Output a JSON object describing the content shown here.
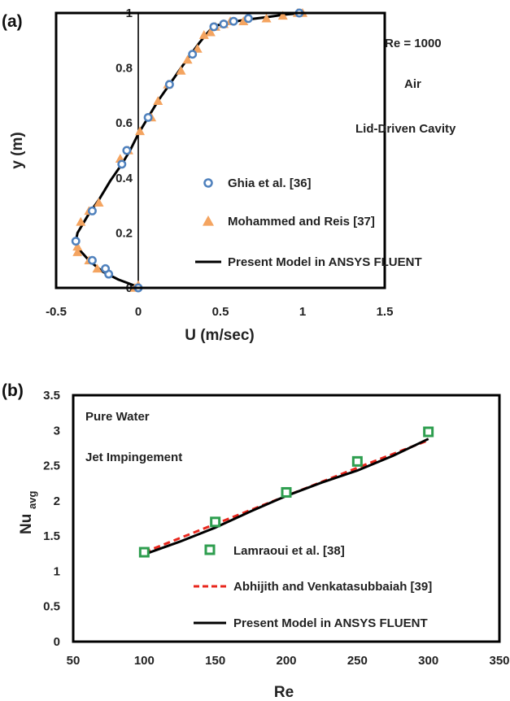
{
  "chart_data": [
    {
      "type": "scatter",
      "panel_label": "(a)",
      "xlabel": "U (m/sec)",
      "ylabel": "y (m)",
      "xlim": [
        -0.5,
        1.5
      ],
      "ylim": [
        0,
        1
      ],
      "xticks": [
        "-0.5",
        "0",
        "0.5",
        "1",
        "1.5"
      ],
      "yticks": [
        "0",
        "0.2",
        "0.4",
        "0.6",
        "0.8",
        "1"
      ],
      "annotations": [
        "Re = 1000",
        "Air",
        "Lid-Driven Cavity"
      ],
      "legend_position": "inside-right",
      "colors": {
        "ghia": "#4f81bd",
        "mohammed": "#f4a460",
        "model": "#000000"
      },
      "series": [
        {
          "name": "Ghia et al. [36]",
          "marker": "circle",
          "x": [
            0,
            -0.18,
            -0.2,
            -0.28,
            -0.38,
            -0.28,
            -0.1,
            -0.07,
            0.06,
            0.19,
            0.33,
            0.46,
            0.52,
            0.58,
            0.67,
            0.98
          ],
          "y": [
            0,
            0.05,
            0.07,
            0.1,
            0.17,
            0.28,
            0.45,
            0.5,
            0.62,
            0.74,
            0.85,
            0.95,
            0.96,
            0.97,
            0.98,
            1.0
          ]
        },
        {
          "name": "Mohammed and Reis [37]",
          "marker": "triangle",
          "x": [
            -0.02,
            0,
            -0.25,
            -0.3,
            -0.37,
            -0.37,
            -0.35,
            -0.3,
            -0.24,
            -0.11,
            -0.06,
            0.01,
            0.08,
            0.12,
            0.18,
            0.26,
            0.3,
            0.36,
            0.4,
            0.44,
            0.47,
            0.52,
            0.56,
            0.64,
            0.78,
            0.88,
            0.97,
            1.0
          ],
          "y": [
            0,
            0.01,
            0.07,
            0.1,
            0.13,
            0.15,
            0.24,
            0.28,
            0.31,
            0.47,
            0.5,
            0.57,
            0.62,
            0.68,
            0.74,
            0.79,
            0.83,
            0.87,
            0.92,
            0.93,
            0.95,
            0.96,
            0.97,
            0.97,
            0.98,
            0.99,
            1.0,
            1.0
          ]
        },
        {
          "name": "Present Model in ANSYS FLUENT",
          "marker": "line",
          "x": [
            0,
            -0.03,
            -0.12,
            -0.22,
            -0.3,
            -0.36,
            -0.38,
            -0.37,
            -0.34,
            -0.3,
            -0.24,
            -0.17,
            -0.1,
            -0.05,
            0,
            0.06,
            0.12,
            0.19,
            0.26,
            0.32,
            0.37,
            0.41,
            0.44,
            0.48,
            0.55,
            0.65,
            0.78,
            0.9,
            1.0
          ],
          "y": [
            0,
            0.01,
            0.03,
            0.06,
            0.1,
            0.14,
            0.17,
            0.2,
            0.23,
            0.27,
            0.32,
            0.39,
            0.45,
            0.5,
            0.56,
            0.62,
            0.68,
            0.74,
            0.8,
            0.85,
            0.89,
            0.92,
            0.94,
            0.955,
            0.965,
            0.975,
            0.985,
            0.995,
            1.0
          ]
        }
      ]
    },
    {
      "type": "line",
      "panel_label": "(b)",
      "xlabel": "Re",
      "ylabel_main": "Nu",
      "ylabel_sub": "avg",
      "xlim": [
        50,
        350
      ],
      "ylim": [
        0,
        3.5
      ],
      "xticks": [
        "50",
        "100",
        "150",
        "200",
        "250",
        "300",
        "350"
      ],
      "yticks": [
        "0",
        "0.5",
        "1",
        "1.5",
        "2",
        "2.5",
        "3",
        "3.5"
      ],
      "annotations": [
        "Pure Water",
        "Jet Impingement"
      ],
      "legend_position": "bottom-right",
      "colors": {
        "lamraoui": "#2e9e4f",
        "abhijith": "#e8261c",
        "model": "#000000"
      },
      "series": [
        {
          "name": "Lamraoui et al. [38]",
          "marker": "square",
          "x": [
            100,
            150,
            200,
            250,
            300
          ],
          "y": [
            1.27,
            1.7,
            2.12,
            2.56,
            2.98
          ]
        },
        {
          "name": "Abhijith and Venkatasubbaiah [39]",
          "marker": "dashed",
          "x": [
            100,
            150,
            200,
            250,
            300
          ],
          "y": [
            1.27,
            1.67,
            2.07,
            2.47,
            2.86
          ]
        },
        {
          "name": "Present Model in ANSYS FLUENT",
          "marker": "line",
          "x": [
            100,
            125,
            150,
            175,
            200,
            225,
            250,
            275,
            300
          ],
          "y": [
            1.24,
            1.42,
            1.62,
            1.85,
            2.07,
            2.26,
            2.43,
            2.64,
            2.88
          ]
        }
      ]
    }
  ]
}
